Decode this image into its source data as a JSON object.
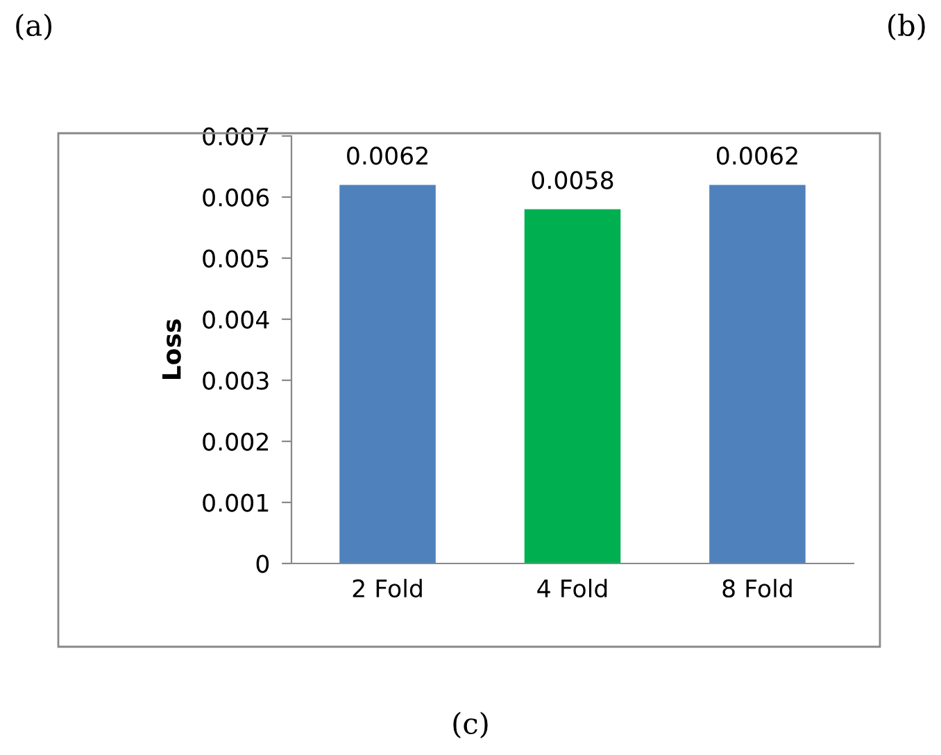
{
  "chart_data": {
    "type": "bar",
    "ylabel": "Loss",
    "categories": [
      "2 Fold",
      "4 Fold",
      "8 Fold"
    ],
    "values": [
      0.0062,
      0.0058,
      0.0062
    ],
    "colors": [
      "#4f81bd",
      "#00b050",
      "#4f81bd"
    ],
    "ylim": [
      0,
      0.007
    ],
    "yticks": [
      0,
      0.001,
      0.002,
      0.003,
      0.004,
      0.005,
      0.006,
      0.007
    ],
    "data_labels": true,
    "grid": false,
    "legend": false,
    "annotations": [
      "(a)",
      "(b)",
      "(c)"
    ]
  }
}
